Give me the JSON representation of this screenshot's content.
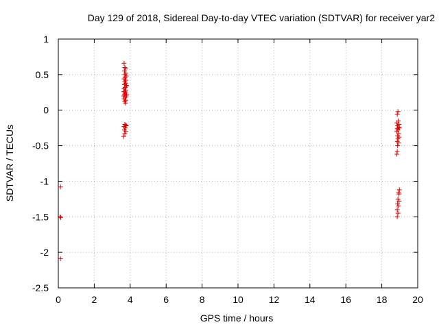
{
  "chart_data": {
    "type": "scatter",
    "title": "Day 129 of 2018, Sidereal Day-to-day VTEC variation (SDTVAR) for receiver yar2",
    "xlabel": "GPS time / hours",
    "ylabel": "SDTVAR / TECUs",
    "xlim": [
      0,
      20
    ],
    "ylim": [
      -2.5,
      1
    ],
    "xticks": [
      0,
      2,
      4,
      6,
      8,
      10,
      12,
      14,
      16,
      18,
      20
    ],
    "yticks": [
      1,
      0.5,
      0,
      -0.5,
      -1,
      -1.5,
      -2,
      -2.5
    ],
    "ytick_labels": [
      "1",
      "0.5",
      "0",
      "-0.5",
      "-1",
      "-1.5",
      "-2",
      "-2.5"
    ],
    "grid": true,
    "marker": "+",
    "color": "#e00000",
    "series": [
      {
        "name": "SDTVAR",
        "points": [
          [
            0.12,
            -1.08
          ],
          [
            0.1,
            -1.5
          ],
          [
            0.13,
            -1.51
          ],
          [
            0.12,
            -2.09
          ],
          [
            3.66,
            0.66
          ],
          [
            3.7,
            0.6
          ],
          [
            3.74,
            0.58
          ],
          [
            3.68,
            0.55
          ],
          [
            3.76,
            0.52
          ],
          [
            3.7,
            0.5
          ],
          [
            3.78,
            0.48
          ],
          [
            3.72,
            0.46
          ],
          [
            3.66,
            0.44
          ],
          [
            3.76,
            0.42
          ],
          [
            3.7,
            0.4
          ],
          [
            3.74,
            0.38
          ],
          [
            3.68,
            0.36
          ],
          [
            3.78,
            0.34
          ],
          [
            3.72,
            0.32
          ],
          [
            3.66,
            0.3
          ],
          [
            3.76,
            0.28
          ],
          [
            3.7,
            0.26
          ],
          [
            3.74,
            0.24
          ],
          [
            3.68,
            0.22
          ],
          [
            3.78,
            0.2
          ],
          [
            3.72,
            0.18
          ],
          [
            3.66,
            0.16
          ],
          [
            3.76,
            0.14
          ],
          [
            3.7,
            0.12
          ],
          [
            3.74,
            0.1
          ],
          [
            3.8,
            0.22
          ],
          [
            3.64,
            0.2
          ],
          [
            3.8,
            0.35
          ],
          [
            3.64,
            0.26
          ],
          [
            3.7,
            -0.2
          ],
          [
            3.76,
            -0.21
          ],
          [
            3.66,
            -0.23
          ],
          [
            3.78,
            -0.22
          ],
          [
            3.72,
            -0.25
          ],
          [
            3.68,
            -0.28
          ],
          [
            3.76,
            -0.3
          ],
          [
            3.7,
            -0.33
          ],
          [
            3.64,
            -0.37
          ],
          [
            18.9,
            -0.02
          ],
          [
            18.86,
            -0.06
          ],
          [
            18.92,
            -0.15
          ],
          [
            18.84,
            -0.18
          ],
          [
            18.96,
            -0.2
          ],
          [
            18.88,
            -0.22
          ],
          [
            18.94,
            -0.24
          ],
          [
            18.86,
            -0.26
          ],
          [
            18.98,
            -0.25
          ],
          [
            18.9,
            -0.28
          ],
          [
            18.84,
            -0.3
          ],
          [
            18.94,
            -0.33
          ],
          [
            18.88,
            -0.36
          ],
          [
            18.96,
            -0.38
          ],
          [
            18.9,
            -0.4
          ],
          [
            18.86,
            -0.44
          ],
          [
            18.94,
            -0.46
          ],
          [
            18.88,
            -0.5
          ],
          [
            18.86,
            -0.58
          ],
          [
            18.84,
            -0.62
          ],
          [
            18.98,
            -1.12
          ],
          [
            18.94,
            -1.16
          ],
          [
            18.96,
            -1.18
          ],
          [
            18.9,
            -1.25
          ],
          [
            18.96,
            -1.28
          ],
          [
            18.88,
            -1.32
          ],
          [
            18.92,
            -1.35
          ],
          [
            18.86,
            -1.4
          ],
          [
            18.9,
            -1.45
          ],
          [
            18.86,
            -1.5
          ]
        ]
      }
    ]
  }
}
